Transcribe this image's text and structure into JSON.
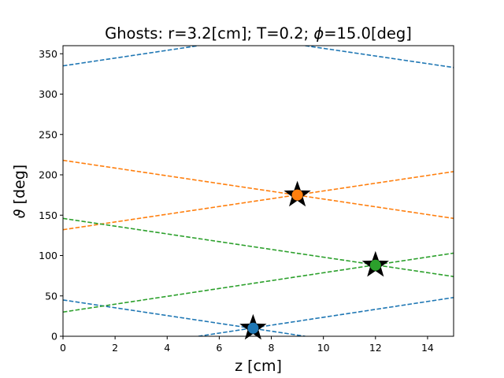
{
  "chart_data": {
    "type": "line",
    "title": "Ghosts: r=3.2[cm]; T=0.2; ",
    "title_phi": "ϕ",
    "title_suffix": "=15.0[deg]",
    "xlabel": "z [cm]",
    "ylabel_symbol": "ϑ",
    "ylabel_suffix": " [deg]",
    "xlim": [
      0,
      15
    ],
    "ylim": [
      0,
      360
    ],
    "xticks": [
      0,
      2,
      4,
      6,
      8,
      10,
      12,
      14
    ],
    "yticks": [
      0,
      50,
      100,
      150,
      200,
      250,
      300,
      350
    ],
    "grid": false,
    "series": [
      {
        "color": "#1f77b4",
        "style": "dashed",
        "x": [
          0,
          9.3
        ],
        "y": [
          45,
          0
        ]
      },
      {
        "color": "#1f77b4",
        "style": "dashed",
        "x": [
          5.2,
          15
        ],
        "y": [
          0,
          48
        ]
      },
      {
        "color": "#1f77b4",
        "style": "dashed",
        "x": [
          0,
          5.2
        ],
        "y": [
          335,
          360
        ]
      },
      {
        "color": "#1f77b4",
        "style": "dashed",
        "x": [
          9.3,
          15
        ],
        "y": [
          360,
          333
        ]
      },
      {
        "color": "#ff7f0e",
        "style": "dashed",
        "x": [
          0,
          15
        ],
        "y": [
          218,
          146
        ]
      },
      {
        "color": "#ff7f0e",
        "style": "dashed",
        "x": [
          0,
          15
        ],
        "y": [
          132,
          204
        ]
      },
      {
        "color": "#2ca02c",
        "style": "dashed",
        "x": [
          0,
          15
        ],
        "y": [
          146,
          74
        ]
      },
      {
        "color": "#2ca02c",
        "style": "dashed",
        "x": [
          0,
          15
        ],
        "y": [
          30,
          103
        ]
      }
    ],
    "points": [
      {
        "x": 7.3,
        "y": 10,
        "color": "#1f77b4"
      },
      {
        "x": 9.0,
        "y": 175,
        "color": "#ff7f0e"
      },
      {
        "x": 12.0,
        "y": 88,
        "color": "#2ca02c"
      }
    ]
  }
}
